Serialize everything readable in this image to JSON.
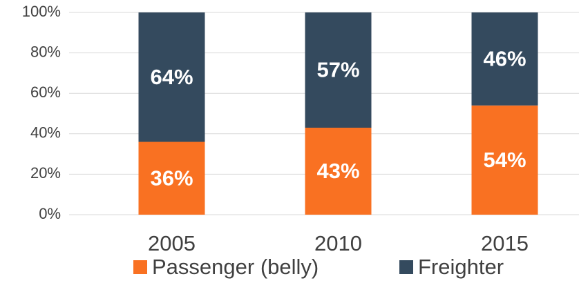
{
  "chart_data": {
    "type": "stacked_bar",
    "categories": [
      "2005",
      "2010",
      "2015"
    ],
    "series": [
      {
        "name": "Passenger (belly)",
        "color": "#f97122",
        "values": [
          36,
          43,
          54
        ],
        "value_labels": [
          "36%",
          "43%",
          "54%"
        ]
      },
      {
        "name": "Freighter",
        "color": "#344a5e",
        "values": [
          64,
          57,
          46
        ],
        "value_labels": [
          "64%",
          "57%",
          "46%"
        ]
      }
    ],
    "ylim": [
      0,
      100
    ],
    "yticks": [
      {
        "value": 0,
        "label": "0%"
      },
      {
        "value": 20,
        "label": "20%"
      },
      {
        "value": 40,
        "label": "40%"
      },
      {
        "value": 60,
        "label": "60%"
      },
      {
        "value": 80,
        "label": "80%"
      },
      {
        "value": 100,
        "label": "100%"
      }
    ],
    "grid": true,
    "legend": "bottom"
  }
}
